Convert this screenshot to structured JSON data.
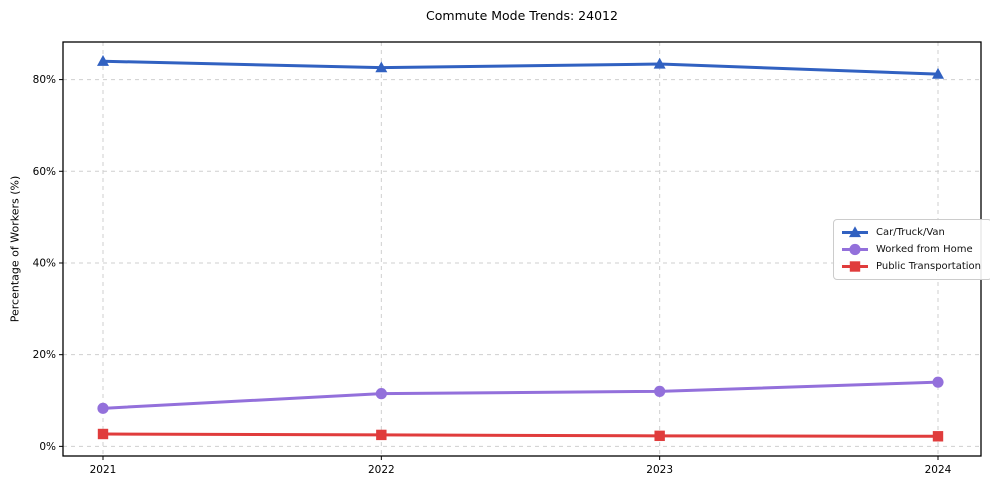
{
  "chart_data": {
    "type": "line",
    "title": "Commute Mode Trends: 24012",
    "xlabel": "",
    "ylabel": "Percentage of Workers (%)",
    "categories": [
      "2021",
      "2022",
      "2023",
      "2024"
    ],
    "series": [
      {
        "name": "Car/Truck/Van",
        "values": [
          84.0,
          82.6,
          83.4,
          81.2
        ],
        "color": "#3161c1",
        "marker": "triangle"
      },
      {
        "name": "Worked from Home",
        "values": [
          8.3,
          11.5,
          12.0,
          14.0
        ],
        "color": "#9370db",
        "marker": "circle"
      },
      {
        "name": "Public Transportation",
        "values": [
          2.7,
          2.5,
          2.3,
          2.2
        ],
        "color": "#e03c3c",
        "marker": "square"
      }
    ],
    "yticks": [
      0,
      20,
      40,
      60,
      80
    ],
    "ytick_labels": [
      "0%",
      "20%",
      "40%",
      "60%",
      "80%"
    ],
    "ylim": [
      -2.1,
      88.2
    ],
    "grid": true,
    "grid_style": "dashed",
    "grid_color": "#cfcfcf",
    "frame_color": "#000000",
    "legend_position": "center-right"
  }
}
